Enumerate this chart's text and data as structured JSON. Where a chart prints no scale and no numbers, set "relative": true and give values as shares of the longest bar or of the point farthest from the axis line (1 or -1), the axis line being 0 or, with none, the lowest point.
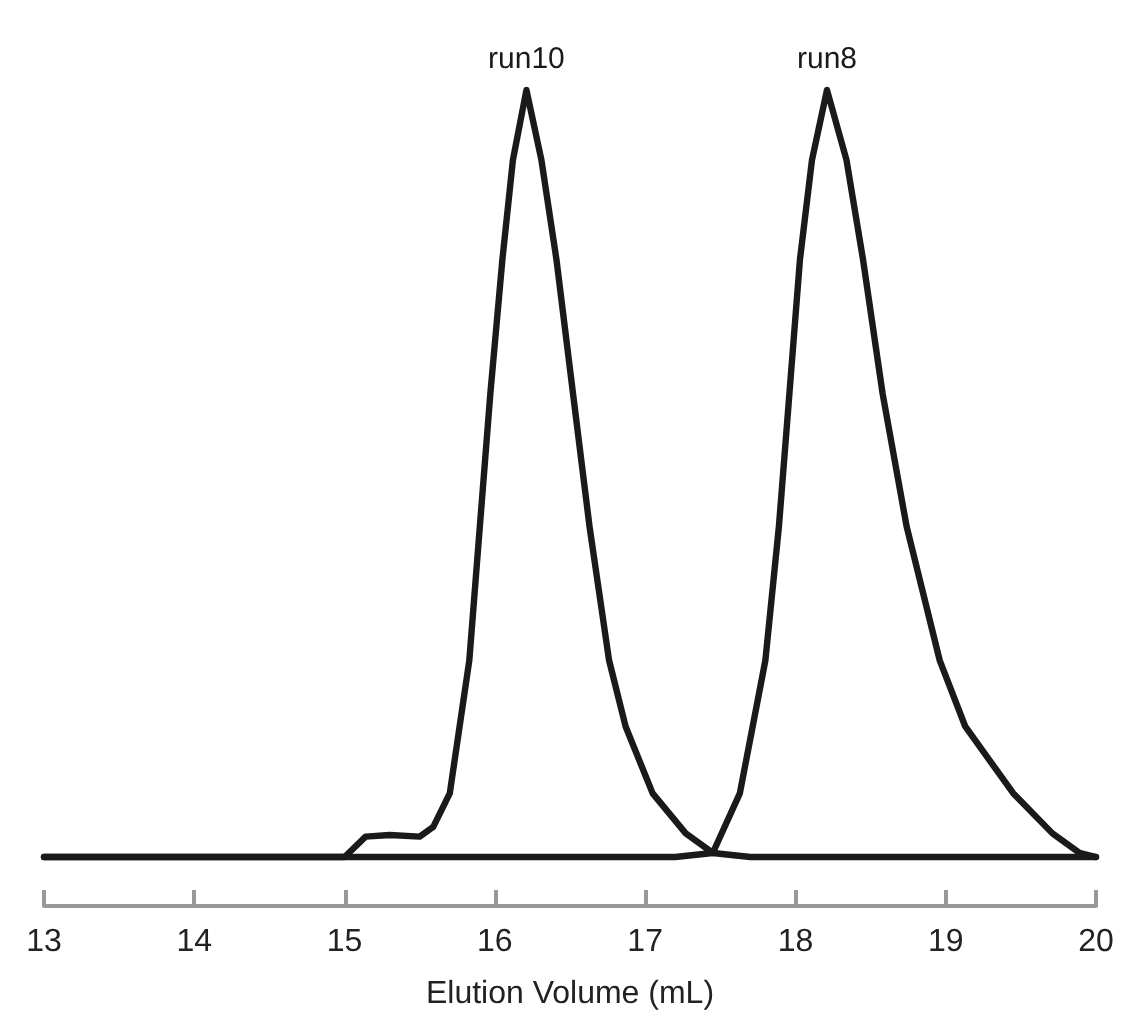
{
  "chart_data": {
    "type": "line",
    "xlabel": "Elution Volume (mL)",
    "relative": true,
    "xlim": [
      13,
      20
    ],
    "xticks": [
      13,
      14,
      15,
      16,
      17,
      18,
      19,
      20
    ],
    "grid": false,
    "legend": false,
    "marker": "none",
    "line_style": "solid",
    "tick_labels": "x",
    "series": [
      {
        "name": "run10",
        "color": "#1a1a1a",
        "x": [
          13,
          15.0,
          15.14,
          15.3,
          15.5,
          15.59,
          15.7,
          15.83,
          15.9,
          15.97,
          16.05,
          16.12,
          16.21,
          16.31,
          16.41,
          16.52,
          16.63,
          16.76,
          16.87,
          17.05,
          17.27,
          17.45,
          17.7,
          20
        ],
        "values": [
          0.06,
          0.06,
          0.085,
          0.087,
          0.085,
          0.097,
          0.138,
          0.301,
          0.465,
          0.628,
          0.792,
          0.914,
          1.0,
          0.914,
          0.792,
          0.628,
          0.465,
          0.301,
          0.22,
          0.138,
          0.089,
          0.065,
          0.06,
          0.06
        ]
      },
      {
        "name": "run8",
        "color": "#1a1a1a",
        "x": [
          13,
          17.2,
          17.45,
          17.63,
          17.8,
          17.89,
          17.96,
          18.03,
          18.11,
          18.21,
          18.34,
          18.45,
          18.58,
          18.74,
          18.96,
          19.13,
          19.45,
          19.71,
          19.89,
          20
        ],
        "values": [
          0.06,
          0.06,
          0.065,
          0.138,
          0.301,
          0.465,
          0.628,
          0.792,
          0.914,
          1.0,
          0.914,
          0.792,
          0.628,
          0.465,
          0.301,
          0.22,
          0.138,
          0.089,
          0.065,
          0.06
        ]
      }
    ]
  }
}
